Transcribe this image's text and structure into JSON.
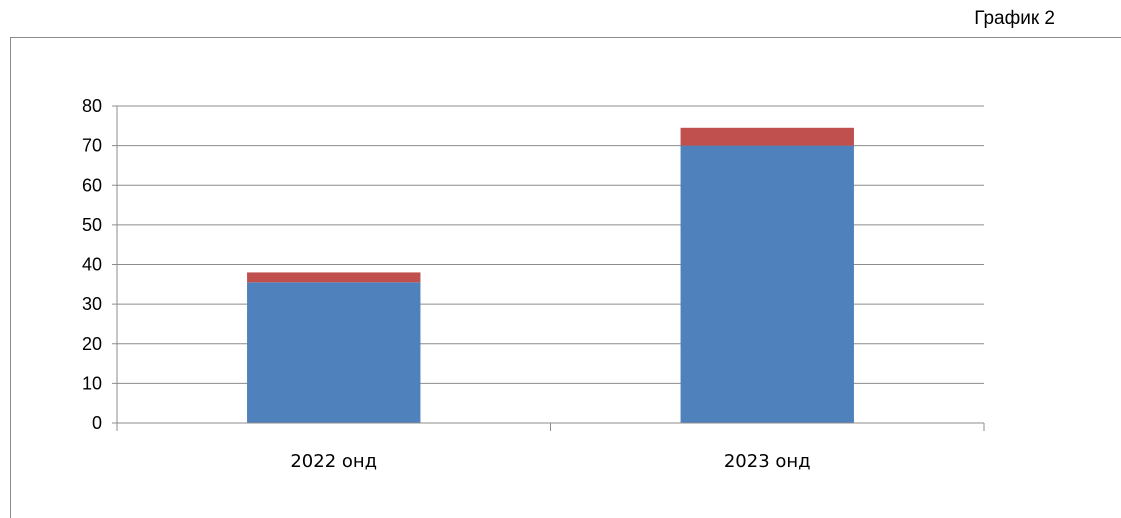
{
  "caption": "График 2",
  "chart_data": {
    "type": "bar",
    "stacked": true,
    "categories": [
      "2022 онд",
      "2023 онд"
    ],
    "series": [
      {
        "values": [
          35.5,
          70
        ],
        "color": "#4f81bd"
      },
      {
        "values": [
          2.5,
          4.5
        ],
        "color": "#c0504d"
      }
    ],
    "ylim": [
      0,
      80
    ],
    "yticks": [
      "0",
      "10",
      "20",
      "30",
      "40",
      "50",
      "60",
      "70",
      "80"
    ],
    "grid": true,
    "legend": "none"
  }
}
